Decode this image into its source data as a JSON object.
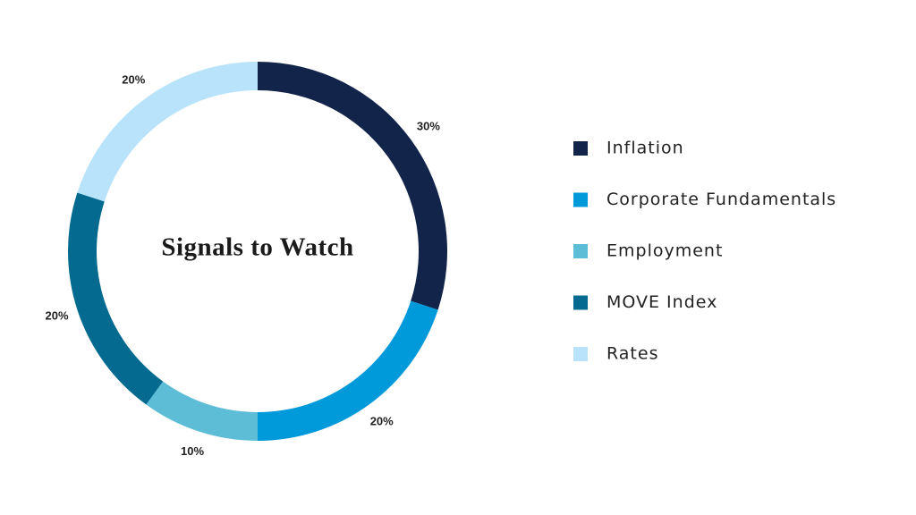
{
  "chart_data": {
    "type": "donut",
    "title": "Signals to Watch",
    "categories": [
      "Inflation",
      "Corporate Fundamentals",
      "Employment",
      "MOVE Index",
      "Rates"
    ],
    "values": [
      30,
      20,
      10,
      20,
      20
    ],
    "value_labels": [
      "30%",
      "20%",
      "10%",
      "20%",
      "20%"
    ],
    "colors": [
      "#12244a",
      "#0099da",
      "#5dbcd6",
      "#046a8f",
      "#b9e3fa"
    ],
    "legend": "right"
  }
}
